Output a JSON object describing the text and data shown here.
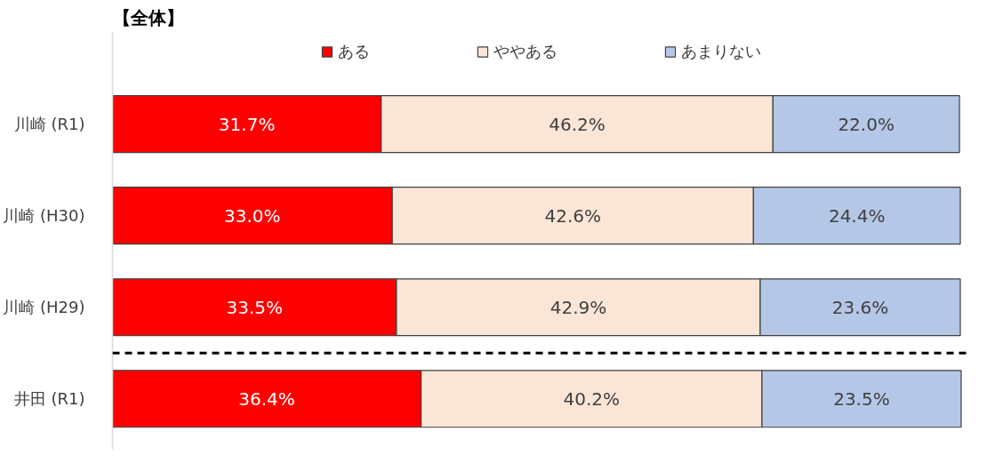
{
  "chart_data": {
    "type": "bar",
    "orientation": "horizontal",
    "stacked": true,
    "title": "【全体】",
    "categories": [
      "川崎 (R1)",
      "川崎 (H30)",
      "川崎 (H29)",
      "井田 (R1)"
    ],
    "series": [
      {
        "name": "ある",
        "color": "#ff0000",
        "values": [
          31.7,
          33.0,
          33.5,
          36.4
        ],
        "value_labels": [
          "31.7%",
          "33.0%",
          "33.5%",
          "36.4%"
        ]
      },
      {
        "name": "ややある",
        "color": "#fbe5d6",
        "values": [
          46.2,
          42.6,
          42.9,
          40.2
        ],
        "value_labels": [
          "46.2%",
          "42.6%",
          "42.9%",
          "40.2%"
        ]
      },
      {
        "name": "あまりない",
        "color": "#b4c7e7",
        "values": [
          22.0,
          24.4,
          23.6,
          23.5
        ],
        "value_labels": [
          "22.0%",
          "24.4%",
          "23.6%",
          "23.5%"
        ]
      }
    ],
    "legend": "top"
  }
}
